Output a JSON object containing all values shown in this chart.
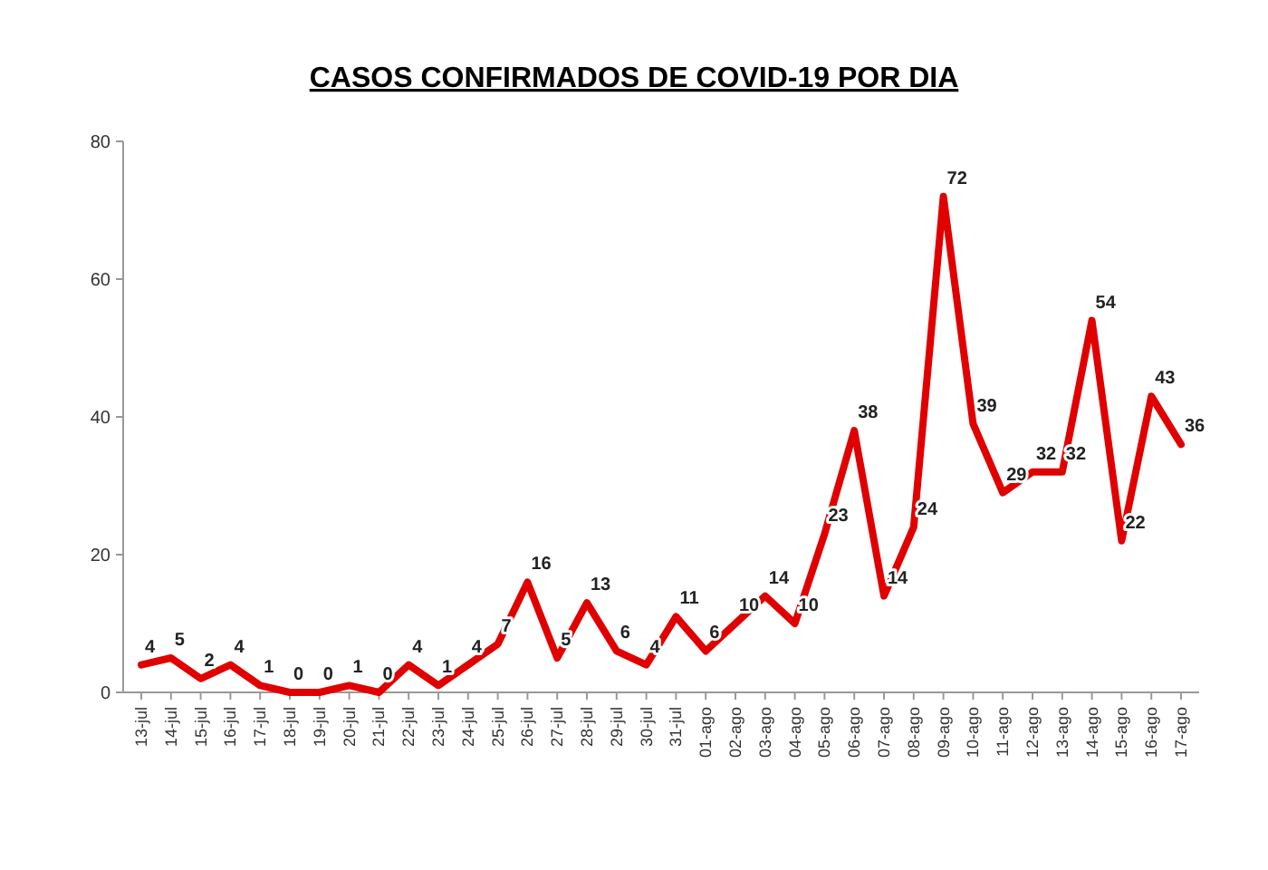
{
  "chart_data": {
    "type": "line",
    "title": "CASOS CONFIRMADOS DE COVID-19 POR DIA",
    "categories": [
      "13-jul",
      "14-jul",
      "15-jul",
      "16-jul",
      "17-jul",
      "18-jul",
      "19-jul",
      "20-jul",
      "21-jul",
      "22-jul",
      "23-jul",
      "24-jul",
      "25-jul",
      "26-jul",
      "27-jul",
      "28-jul",
      "29-jul",
      "30-jul",
      "31-jul",
      "01-ago",
      "02-ago",
      "03-ago",
      "04-ago",
      "05-ago",
      "06-ago",
      "07-ago",
      "08-ago",
      "09-ago",
      "10-ago",
      "11-ago",
      "12-ago",
      "13-ago",
      "14-ago",
      "15-ago",
      "16-ago",
      "17-ago"
    ],
    "series": [
      {
        "color": "#e00000",
        "values": [
          4,
          5,
          2,
          4,
          1,
          0,
          0,
          1,
          0,
          4,
          1,
          4,
          7,
          16,
          5,
          13,
          6,
          4,
          11,
          6,
          10,
          14,
          10,
          23,
          38,
          14,
          24,
          72,
          39,
          29,
          32,
          32,
          54,
          22,
          43,
          36
        ]
      }
    ],
    "ylim": [
      0,
      80
    ],
    "yticks": [
      0,
      20,
      40,
      60,
      80
    ],
    "grid": false,
    "data_labels": true,
    "marker": "none",
    "line_style": "solid"
  }
}
